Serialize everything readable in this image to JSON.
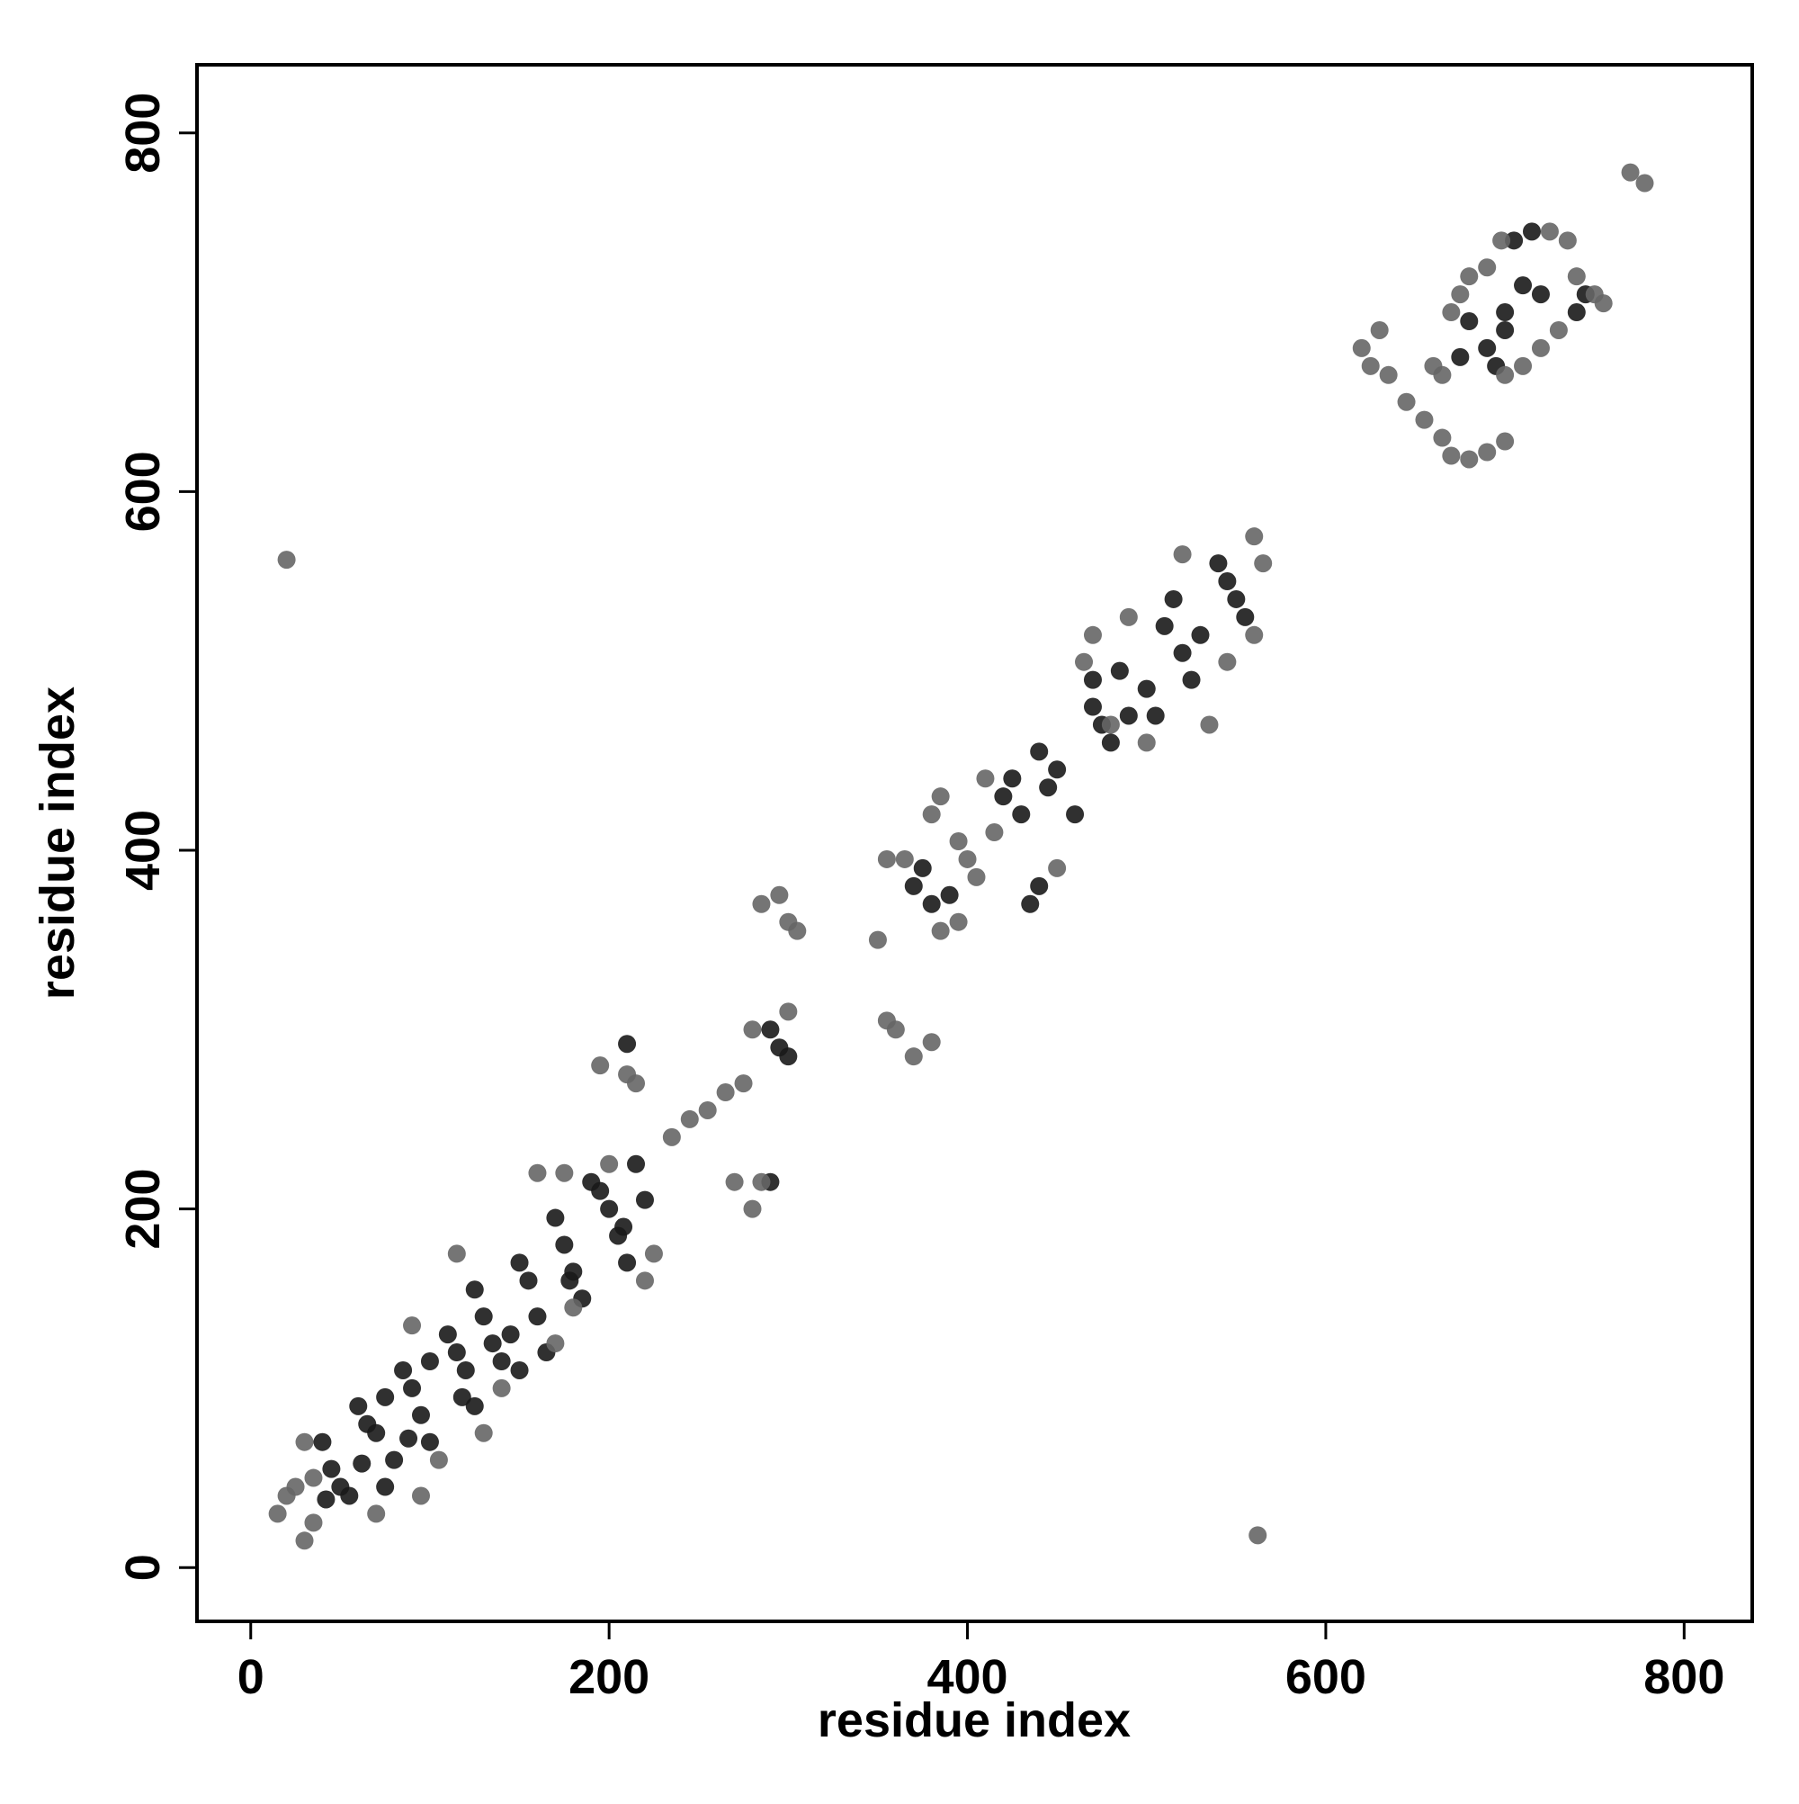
{
  "chart_data": {
    "type": "scatter",
    "xlabel": "residue index",
    "ylabel": "residue index",
    "xlim": [
      -30,
      838
    ],
    "ylim": [
      -30,
      838
    ],
    "xticks": [
      0,
      200,
      400,
      600,
      800
    ],
    "yticks": [
      0,
      200,
      400,
      600,
      800
    ],
    "series": [
      {
        "color": "#1a1a1a",
        "x": [
          40,
          45,
          50,
          42,
          60,
          65,
          70,
          75,
          80,
          85,
          90,
          95,
          100,
          110,
          115,
          120,
          125,
          130,
          135,
          140,
          150,
          155,
          160,
          165,
          170,
          175,
          180,
          185,
          195,
          200,
          205,
          210,
          215,
          220,
          62,
          88,
          118,
          145,
          178,
          208,
          125,
          100,
          75,
          150,
          55,
          190,
          210,
          290,
          295,
          300,
          290,
          370,
          375,
          380,
          390,
          420,
          425,
          430,
          440,
          445,
          450,
          460,
          470,
          475,
          480,
          485,
          490,
          500,
          510,
          515,
          520,
          525,
          530,
          540,
          545,
          550,
          555,
          435,
          440,
          470,
          505,
          700,
          710,
          715,
          705,
          720,
          690,
          695,
          700,
          680,
          740,
          745,
          675
        ],
        "y": [
          70,
          55,
          45,
          38,
          90,
          80,
          75,
          45,
          60,
          110,
          100,
          85,
          70,
          130,
          120,
          110,
          90,
          140,
          125,
          115,
          170,
          160,
          140,
          120,
          195,
          180,
          165,
          150,
          210,
          200,
          185,
          170,
          225,
          205,
          58,
          72,
          95,
          130,
          160,
          190,
          155,
          115,
          95,
          110,
          40,
          215,
          292,
          300,
          290,
          285,
          215,
          380,
          390,
          370,
          375,
          430,
          440,
          420,
          455,
          435,
          445,
          420,
          480,
          470,
          460,
          500,
          475,
          490,
          525,
          540,
          510,
          495,
          520,
          560,
          550,
          540,
          530,
          370,
          380,
          495,
          475,
          700,
          715,
          745,
          740,
          710,
          680,
          670,
          690,
          695,
          700,
          710,
          675
        ]
      },
      {
        "color": "#666666",
        "x": [
          15,
          20,
          25,
          30,
          35,
          30,
          35,
          70,
          95,
          105,
          130,
          140,
          170,
          180,
          220,
          225,
          90,
          115,
          160,
          175,
          200,
          20,
          562,
          235,
          245,
          255,
          265,
          275,
          270,
          280,
          285,
          285,
          295,
          300,
          305,
          195,
          210,
          215,
          350,
          355,
          360,
          370,
          380,
          300,
          280,
          355,
          365,
          380,
          385,
          395,
          400,
          405,
          410,
          415,
          395,
          385,
          450,
          465,
          470,
          480,
          490,
          500,
          520,
          535,
          545,
          560,
          565,
          560,
          620,
          625,
          630,
          635,
          645,
          655,
          665,
          670,
          675,
          680,
          690,
          665,
          670,
          680,
          690,
          700,
          710,
          720,
          730,
          740,
          750,
          755,
          725,
          735,
          698,
          770,
          778,
          660,
          700
        ],
        "y": [
          30,
          40,
          45,
          15,
          25,
          70,
          50,
          30,
          40,
          60,
          75,
          100,
          125,
          145,
          160,
          175,
          135,
          175,
          220,
          220,
          225,
          562,
          18,
          240,
          250,
          255,
          265,
          270,
          215,
          200,
          215,
          370,
          375,
          360,
          355,
          280,
          275,
          270,
          350,
          305,
          300,
          285,
          293,
          310,
          300,
          395,
          395,
          420,
          430,
          405,
          395,
          385,
          440,
          410,
          360,
          355,
          390,
          505,
          520,
          470,
          530,
          460,
          565,
          470,
          505,
          520,
          560,
          575,
          680,
          670,
          690,
          665,
          650,
          640,
          665,
          700,
          710,
          720,
          725,
          630,
          620,
          618,
          622,
          628,
          670,
          680,
          690,
          720,
          710,
          705,
          745,
          740,
          740,
          778,
          772,
          670,
          665
        ]
      }
    ]
  }
}
